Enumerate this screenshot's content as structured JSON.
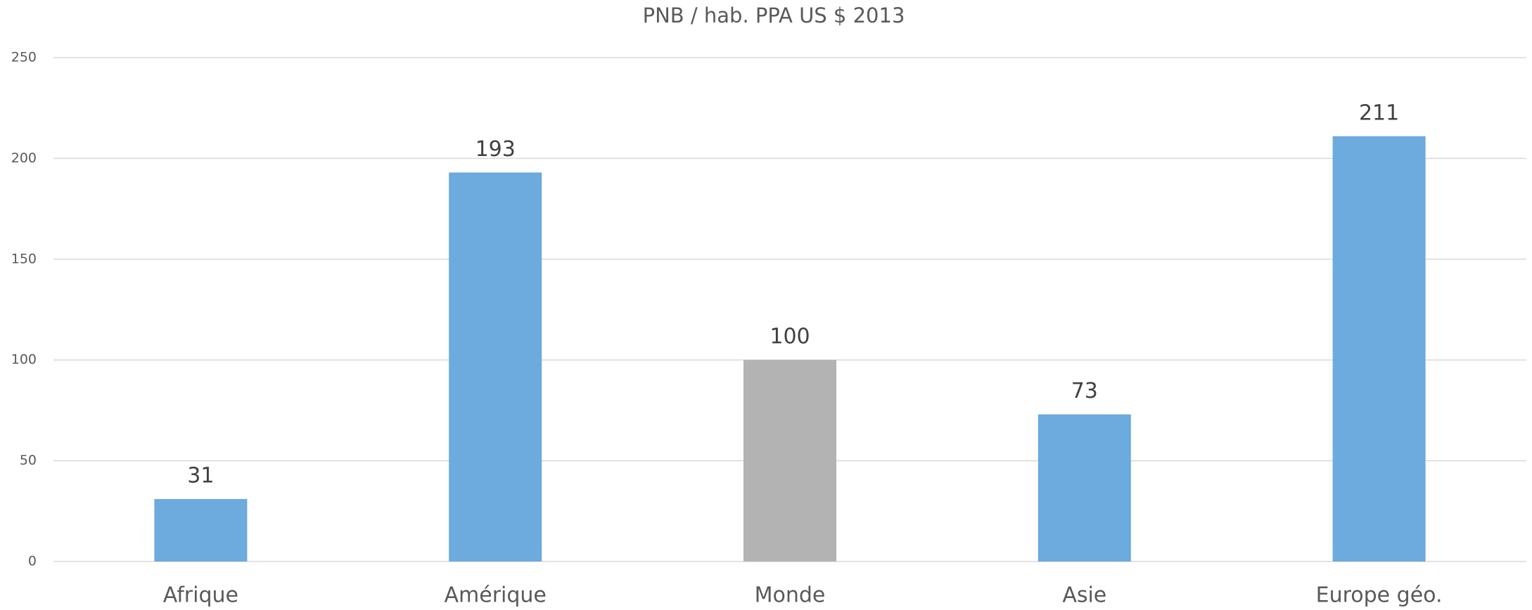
{
  "chart_data": {
    "type": "bar",
    "title": "PNB / hab. PPA US $ 2013",
    "categories": [
      "Afrique",
      "Amérique",
      "Monde",
      "Asie",
      "Europe géo."
    ],
    "values": [
      31,
      193,
      100,
      73,
      211
    ],
    "colors": [
      "#6daadd",
      "#6daadd",
      "#b3b3b3",
      "#6daadd",
      "#6daadd"
    ],
    "ylim": [
      0,
      250
    ],
    "yticks": [
      0,
      50,
      100,
      150,
      200,
      250
    ],
    "grid": true,
    "data_labels": true
  }
}
